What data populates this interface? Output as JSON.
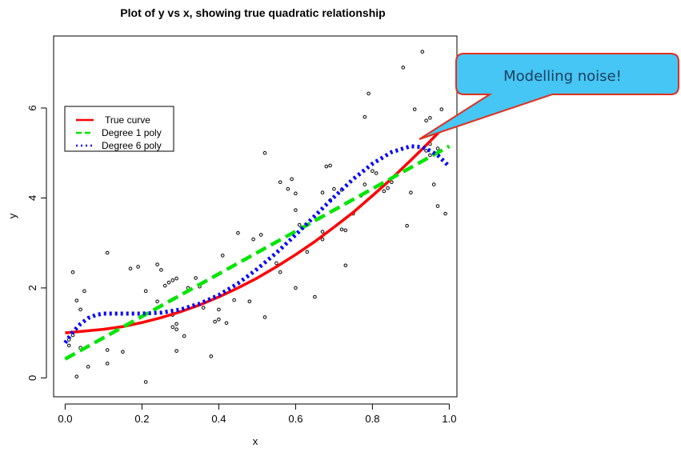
{
  "chart_data": {
    "type": "scatter",
    "title": "Plot of y vs x, showing true quadratic relationship",
    "xlabel": "x",
    "ylabel": "y",
    "xlim": [
      -0.03,
      1.02
    ],
    "ylim": [
      -0.42,
      7.6
    ],
    "x_ticks": [
      0.0,
      0.2,
      0.4,
      0.6,
      0.8,
      1.0
    ],
    "x_tick_labels": [
      "0.0",
      "0.2",
      "0.4",
      "0.6",
      "0.8",
      "1.0"
    ],
    "y_ticks": [
      0,
      2,
      4,
      6
    ],
    "y_tick_labels": [
      "0",
      "2",
      "4",
      "6"
    ],
    "grid": false,
    "legend_position": "top-left",
    "points": [
      {
        "x": 0.01,
        "y": 0.85
      },
      {
        "x": 0.01,
        "y": 0.72
      },
      {
        "x": 0.02,
        "y": 2.35
      },
      {
        "x": 0.02,
        "y": 0.95
      },
      {
        "x": 0.03,
        "y": 0.03
      },
      {
        "x": 0.03,
        "y": 1.72
      },
      {
        "x": 0.04,
        "y": 1.52
      },
      {
        "x": 0.04,
        "y": 0.67
      },
      {
        "x": 0.05,
        "y": 1.93
      },
      {
        "x": 0.06,
        "y": 0.25
      },
      {
        "x": 0.11,
        "y": 2.78
      },
      {
        "x": 0.11,
        "y": 0.62
      },
      {
        "x": 0.11,
        "y": 0.32
      },
      {
        "x": 0.15,
        "y": 0.58
      },
      {
        "x": 0.17,
        "y": 2.43
      },
      {
        "x": 0.19,
        "y": 2.47
      },
      {
        "x": 0.21,
        "y": 1.93
      },
      {
        "x": 0.21,
        "y": -0.09
      },
      {
        "x": 0.24,
        "y": 2.52
      },
      {
        "x": 0.24,
        "y": 1.7
      },
      {
        "x": 0.25,
        "y": 2.4
      },
      {
        "x": 0.26,
        "y": 2.05
      },
      {
        "x": 0.27,
        "y": 2.12
      },
      {
        "x": 0.28,
        "y": 2.17
      },
      {
        "x": 0.29,
        "y": 2.21
      },
      {
        "x": 0.29,
        "y": 1.2
      },
      {
        "x": 0.28,
        "y": 1.13
      },
      {
        "x": 0.29,
        "y": 1.08
      },
      {
        "x": 0.28,
        "y": 1.4
      },
      {
        "x": 0.29,
        "y": 0.6
      },
      {
        "x": 0.31,
        "y": 0.93
      },
      {
        "x": 0.32,
        "y": 2.0
      },
      {
        "x": 0.34,
        "y": 2.22
      },
      {
        "x": 0.35,
        "y": 2.03
      },
      {
        "x": 0.36,
        "y": 1.56
      },
      {
        "x": 0.38,
        "y": 0.48
      },
      {
        "x": 0.39,
        "y": 1.25
      },
      {
        "x": 0.4,
        "y": 1.52
      },
      {
        "x": 0.4,
        "y": 1.3
      },
      {
        "x": 0.41,
        "y": 2.72
      },
      {
        "x": 0.42,
        "y": 1.22
      },
      {
        "x": 0.44,
        "y": 1.73
      },
      {
        "x": 0.45,
        "y": 3.22
      },
      {
        "x": 0.48,
        "y": 1.7
      },
      {
        "x": 0.49,
        "y": 3.08
      },
      {
        "x": 0.51,
        "y": 3.18
      },
      {
        "x": 0.52,
        "y": 1.35
      },
      {
        "x": 0.52,
        "y": 5.0
      },
      {
        "x": 0.55,
        "y": 2.55
      },
      {
        "x": 0.56,
        "y": 2.35
      },
      {
        "x": 0.56,
        "y": 4.35
      },
      {
        "x": 0.58,
        "y": 4.2
      },
      {
        "x": 0.59,
        "y": 4.42
      },
      {
        "x": 0.6,
        "y": 3.73
      },
      {
        "x": 0.6,
        "y": 4.1
      },
      {
        "x": 0.6,
        "y": 2.0
      },
      {
        "x": 0.61,
        "y": 3.4
      },
      {
        "x": 0.63,
        "y": 2.8
      },
      {
        "x": 0.65,
        "y": 1.8
      },
      {
        "x": 0.67,
        "y": 3.08
      },
      {
        "x": 0.67,
        "y": 3.25
      },
      {
        "x": 0.67,
        "y": 4.12
      },
      {
        "x": 0.68,
        "y": 4.7
      },
      {
        "x": 0.69,
        "y": 4.72
      },
      {
        "x": 0.69,
        "y": 3.95
      },
      {
        "x": 0.7,
        "y": 4.2
      },
      {
        "x": 0.72,
        "y": 4.18
      },
      {
        "x": 0.72,
        "y": 3.3
      },
      {
        "x": 0.73,
        "y": 3.28
      },
      {
        "x": 0.73,
        "y": 2.5
      },
      {
        "x": 0.75,
        "y": 3.65
      },
      {
        "x": 0.77,
        "y": 4.05
      },
      {
        "x": 0.78,
        "y": 4.3
      },
      {
        "x": 0.78,
        "y": 5.8
      },
      {
        "x": 0.79,
        "y": 6.32
      },
      {
        "x": 0.8,
        "y": 4.6
      },
      {
        "x": 0.81,
        "y": 4.55
      },
      {
        "x": 0.83,
        "y": 4.15
      },
      {
        "x": 0.84,
        "y": 4.22
      },
      {
        "x": 0.85,
        "y": 4.35
      },
      {
        "x": 0.88,
        "y": 6.9
      },
      {
        "x": 0.89,
        "y": 3.38
      },
      {
        "x": 0.9,
        "y": 4.12
      },
      {
        "x": 0.91,
        "y": 5.97
      },
      {
        "x": 0.93,
        "y": 7.25
      },
      {
        "x": 0.94,
        "y": 5.72
      },
      {
        "x": 0.95,
        "y": 5.78
      },
      {
        "x": 0.95,
        "y": 5.2
      },
      {
        "x": 0.95,
        "y": 4.95
      },
      {
        "x": 0.96,
        "y": 4.3
      },
      {
        "x": 0.97,
        "y": 3.82
      },
      {
        "x": 0.97,
        "y": 5.1
      },
      {
        "x": 0.98,
        "y": 5.97
      },
      {
        "x": 0.99,
        "y": 3.65
      },
      {
        "x": 0.94,
        "y": 5.05
      }
    ],
    "series": [
      {
        "name": "True curve",
        "color": "#ff0000",
        "style": "solid",
        "x": [
          0.0,
          0.05,
          0.1,
          0.15,
          0.2,
          0.25,
          0.3,
          0.35,
          0.4,
          0.45,
          0.5,
          0.55,
          0.6,
          0.65,
          0.7,
          0.75,
          0.8,
          0.85,
          0.9,
          0.95,
          1.0
        ],
        "y": [
          1.0,
          1.04,
          1.08,
          1.14,
          1.23,
          1.34,
          1.47,
          1.62,
          1.8,
          2.0,
          2.22,
          2.47,
          2.74,
          3.03,
          3.35,
          3.68,
          4.05,
          4.43,
          4.84,
          5.26,
          5.7
        ]
      },
      {
        "name": "Degree 1 poly",
        "color": "#00e600",
        "style": "dashed",
        "x": [
          0.0,
          1.0
        ],
        "y": [
          0.42,
          5.15
        ]
      },
      {
        "name": "Degree 6 poly",
        "color": "#0000ff",
        "style": "dotted",
        "x": [
          0.0,
          0.02,
          0.04,
          0.06,
          0.08,
          0.1,
          0.15,
          0.2,
          0.25,
          0.3,
          0.35,
          0.4,
          0.45,
          0.5,
          0.55,
          0.6,
          0.65,
          0.7,
          0.75,
          0.8,
          0.85,
          0.9,
          0.93,
          0.95,
          0.97,
          1.0
        ],
        "y": [
          0.78,
          1.02,
          1.2,
          1.33,
          1.4,
          1.43,
          1.43,
          1.43,
          1.45,
          1.52,
          1.65,
          1.84,
          2.1,
          2.42,
          2.78,
          3.18,
          3.6,
          4.02,
          4.42,
          4.76,
          5.02,
          5.15,
          5.13,
          5.05,
          4.95,
          4.7
        ]
      }
    ],
    "annotation": {
      "text": "Modelling noise!",
      "fill": "#45c6f5",
      "stroke": "#e0301e",
      "pointer_x": 0.92,
      "pointer_y": 5.3
    }
  }
}
